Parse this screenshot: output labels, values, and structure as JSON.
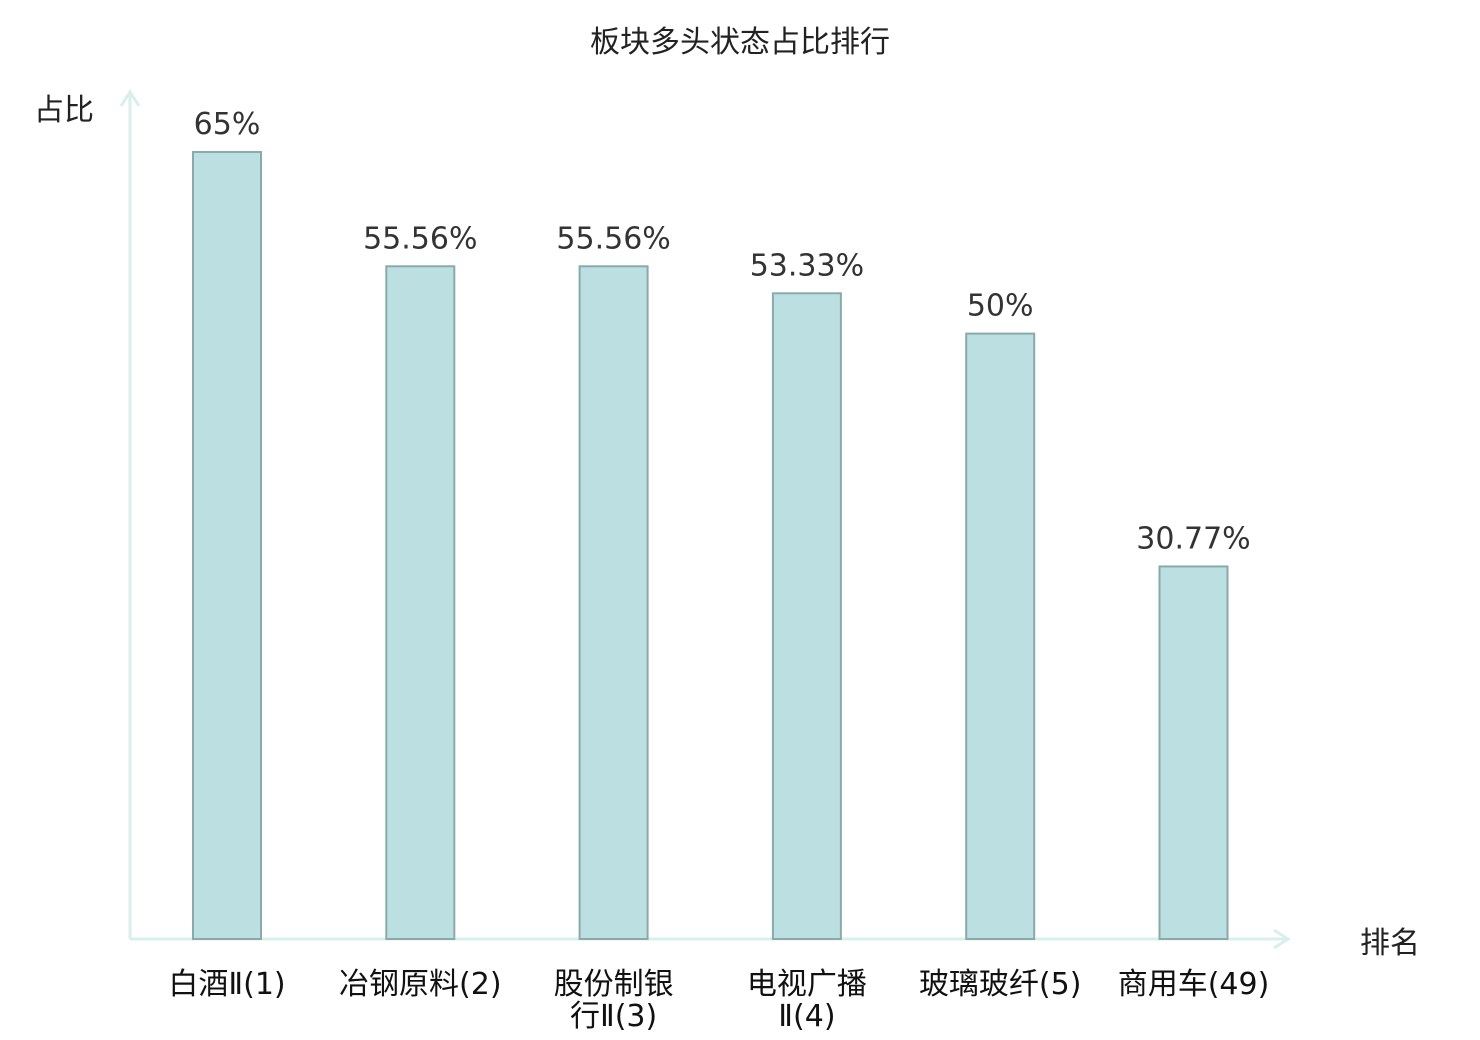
{
  "chart_data": {
    "type": "bar",
    "title": "板块多头状态占比排行",
    "ylabel": "占比",
    "xlabel": "排名",
    "ylim": [
      0,
      72
    ],
    "categories": [
      "白酒Ⅱ(1)",
      "冶钢原料(2)",
      "股份制银行Ⅱ(3)",
      "电视广播Ⅱ(4)",
      "玻璃玻纤(5)",
      "商用车(49)"
    ],
    "category_lines": [
      [
        "白酒Ⅱ(1)"
      ],
      [
        "冶钢原料(2)"
      ],
      [
        "股份制银",
        "行Ⅱ(3)"
      ],
      [
        "电视广播",
        "Ⅱ(4)"
      ],
      [
        "玻璃玻纤(5)"
      ],
      [
        "商用车(49)"
      ]
    ],
    "values": [
      65,
      55.56,
      55.56,
      53.33,
      50,
      30.77
    ],
    "value_labels": [
      "65%",
      "55.56%",
      "55.56%",
      "53.33%",
      "50%",
      "30.77%"
    ],
    "highlight_index": 5,
    "grid": false
  },
  "colors": {
    "bar_fill": "#bce0e2",
    "bar_stroke": "#8aa9ab",
    "axis": "#d8efec",
    "highlight_text": "#e0201d",
    "text": "#111111"
  }
}
